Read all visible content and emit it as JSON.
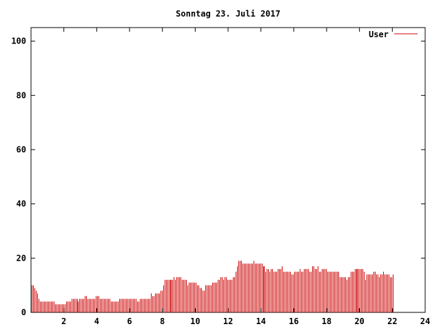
{
  "chart_data": {
    "type": "bar",
    "title": "Sonntag 23. Juli 2017",
    "xlabel": "",
    "ylabel": "",
    "xlim": [
      0,
      24
    ],
    "ylim": [
      0,
      105
    ],
    "xticks": [
      2,
      4,
      6,
      8,
      10,
      12,
      14,
      16,
      18,
      20,
      22,
      24
    ],
    "xtick_labels": [
      "2",
      "4",
      "6",
      "8",
      "10",
      "12",
      "14",
      "16",
      "18",
      "20",
      "22",
      "24"
    ],
    "yticks": [
      0,
      20,
      40,
      60,
      80,
      100
    ],
    "ytick_labels": [
      "0",
      "20",
      "40",
      "60",
      "80",
      "100"
    ],
    "grid": false,
    "legend": "top-right",
    "series": [
      {
        "name": "User",
        "color": "#cc0000",
        "x_step_hours": 0.0833,
        "values": [
          10,
          10,
          9,
          8,
          7,
          5,
          4,
          4,
          4,
          4,
          4,
          4,
          4,
          4,
          4,
          4,
          4,
          3,
          3,
          3,
          3,
          3,
          3,
          3,
          3,
          4,
          4,
          4,
          4,
          5,
          5,
          5,
          5,
          5,
          4,
          5,
          5,
          5,
          5,
          6,
          6,
          5,
          5,
          5,
          5,
          5,
          5,
          6,
          6,
          6,
          5,
          5,
          5,
          5,
          5,
          5,
          5,
          5,
          4,
          4,
          4,
          4,
          4,
          4,
          5,
          5,
          5,
          5,
          5,
          5,
          5,
          5,
          5,
          5,
          5,
          5,
          5,
          4,
          4,
          5,
          5,
          5,
          5,
          5,
          5,
          5,
          5,
          7,
          6,
          6,
          7,
          7,
          7,
          7,
          8,
          8,
          10,
          12,
          12,
          12,
          12,
          12,
          12,
          12,
          13,
          12,
          13,
          13,
          13,
          13,
          12,
          12,
          12,
          12,
          10,
          11,
          11,
          11,
          11,
          11,
          11,
          10,
          10,
          9,
          9,
          8,
          8,
          10,
          10,
          10,
          10,
          10,
          11,
          11,
          11,
          11,
          12,
          12,
          13,
          13,
          12,
          13,
          13,
          12,
          12,
          12,
          12,
          13,
          13,
          15,
          17,
          19,
          19,
          19,
          18,
          18,
          18,
          18,
          18,
          18,
          18,
          18,
          19,
          18,
          18,
          18,
          18,
          18,
          18,
          17,
          17,
          15,
          16,
          16,
          15,
          16,
          16,
          15,
          15,
          15,
          16,
          16,
          16,
          17,
          15,
          15,
          15,
          15,
          15,
          15,
          14,
          14,
          15,
          15,
          15,
          15,
          16,
          15,
          15,
          16,
          16,
          16,
          16,
          15,
          15,
          17,
          17,
          16,
          16,
          17,
          15,
          15,
          16,
          16,
          16,
          16,
          15,
          15,
          15,
          15,
          15,
          15,
          15,
          15,
          15,
          13,
          13,
          13,
          13,
          13,
          12,
          13,
          13,
          15,
          15,
          15,
          16,
          16,
          16,
          16,
          16,
          16,
          16,
          15,
          12,
          14,
          14,
          14,
          14,
          14,
          15,
          15,
          14,
          14,
          13,
          14,
          14,
          15,
          14,
          14,
          14,
          14,
          13,
          13,
          14
        ]
      }
    ]
  }
}
